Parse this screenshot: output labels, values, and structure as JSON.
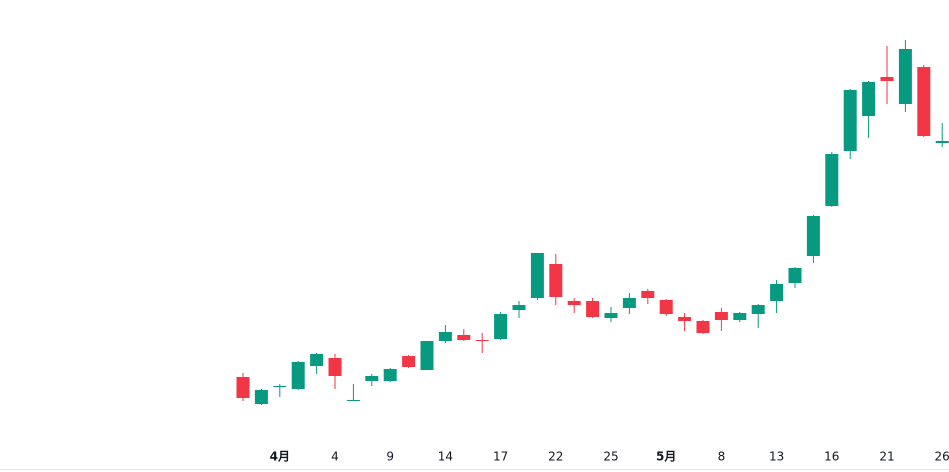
{
  "chart_data": {
    "type": "candlestick",
    "categories": [
      null,
      null,
      "4月",
      null,
      null,
      "4",
      null,
      null,
      "9",
      null,
      null,
      "14",
      null,
      null,
      "17",
      null,
      null,
      "22",
      null,
      null,
      "25",
      null,
      null,
      "5月",
      null,
      null,
      "8",
      null,
      null,
      "13",
      null,
      null,
      "16",
      null,
      null,
      "21",
      null,
      null,
      "26"
    ],
    "open": [
      95,
      68,
      85,
      83,
      106,
      114,
      71,
      91,
      91,
      116,
      102,
      131,
      137,
      132,
      133,
      162,
      174,
      208,
      171,
      171,
      154,
      164,
      181,
      172,
      155,
      151,
      160,
      152,
      158,
      171,
      189,
      216,
      266,
      321,
      356,
      395,
      368,
      405,
      329
    ],
    "high": [
      99,
      83,
      88,
      111,
      119,
      118,
      88,
      98,
      104,
      117,
      131,
      147,
      143,
      139,
      160,
      171,
      219,
      218,
      174,
      174,
      165,
      179,
      183,
      173,
      159,
      152,
      164,
      160,
      168,
      192,
      205,
      257,
      320,
      383,
      391,
      426,
      432,
      407,
      349
    ],
    "low": [
      71,
      67,
      75,
      82,
      98,
      83,
      71,
      86,
      90,
      104,
      102,
      129,
      131,
      119,
      132,
      154,
      172,
      167,
      159,
      154,
      150,
      158,
      168,
      156,
      141,
      138,
      141,
      150,
      144,
      159,
      184,
      209,
      265,
      313,
      334,
      368,
      360,
      335,
      325
    ],
    "close": [
      74,
      82,
      86,
      110,
      118,
      96,
      72,
      96,
      103,
      105,
      131,
      140,
      132,
      131,
      158,
      167,
      219,
      175,
      167,
      155,
      159,
      174,
      174,
      158,
      151,
      139,
      152,
      159,
      167,
      188,
      204,
      256,
      318,
      382,
      390,
      391,
      423,
      336,
      331
    ],
    "up_color": "#089981",
    "down_color": "#f23645",
    "ylim": [
      0,
      472
    ]
  }
}
